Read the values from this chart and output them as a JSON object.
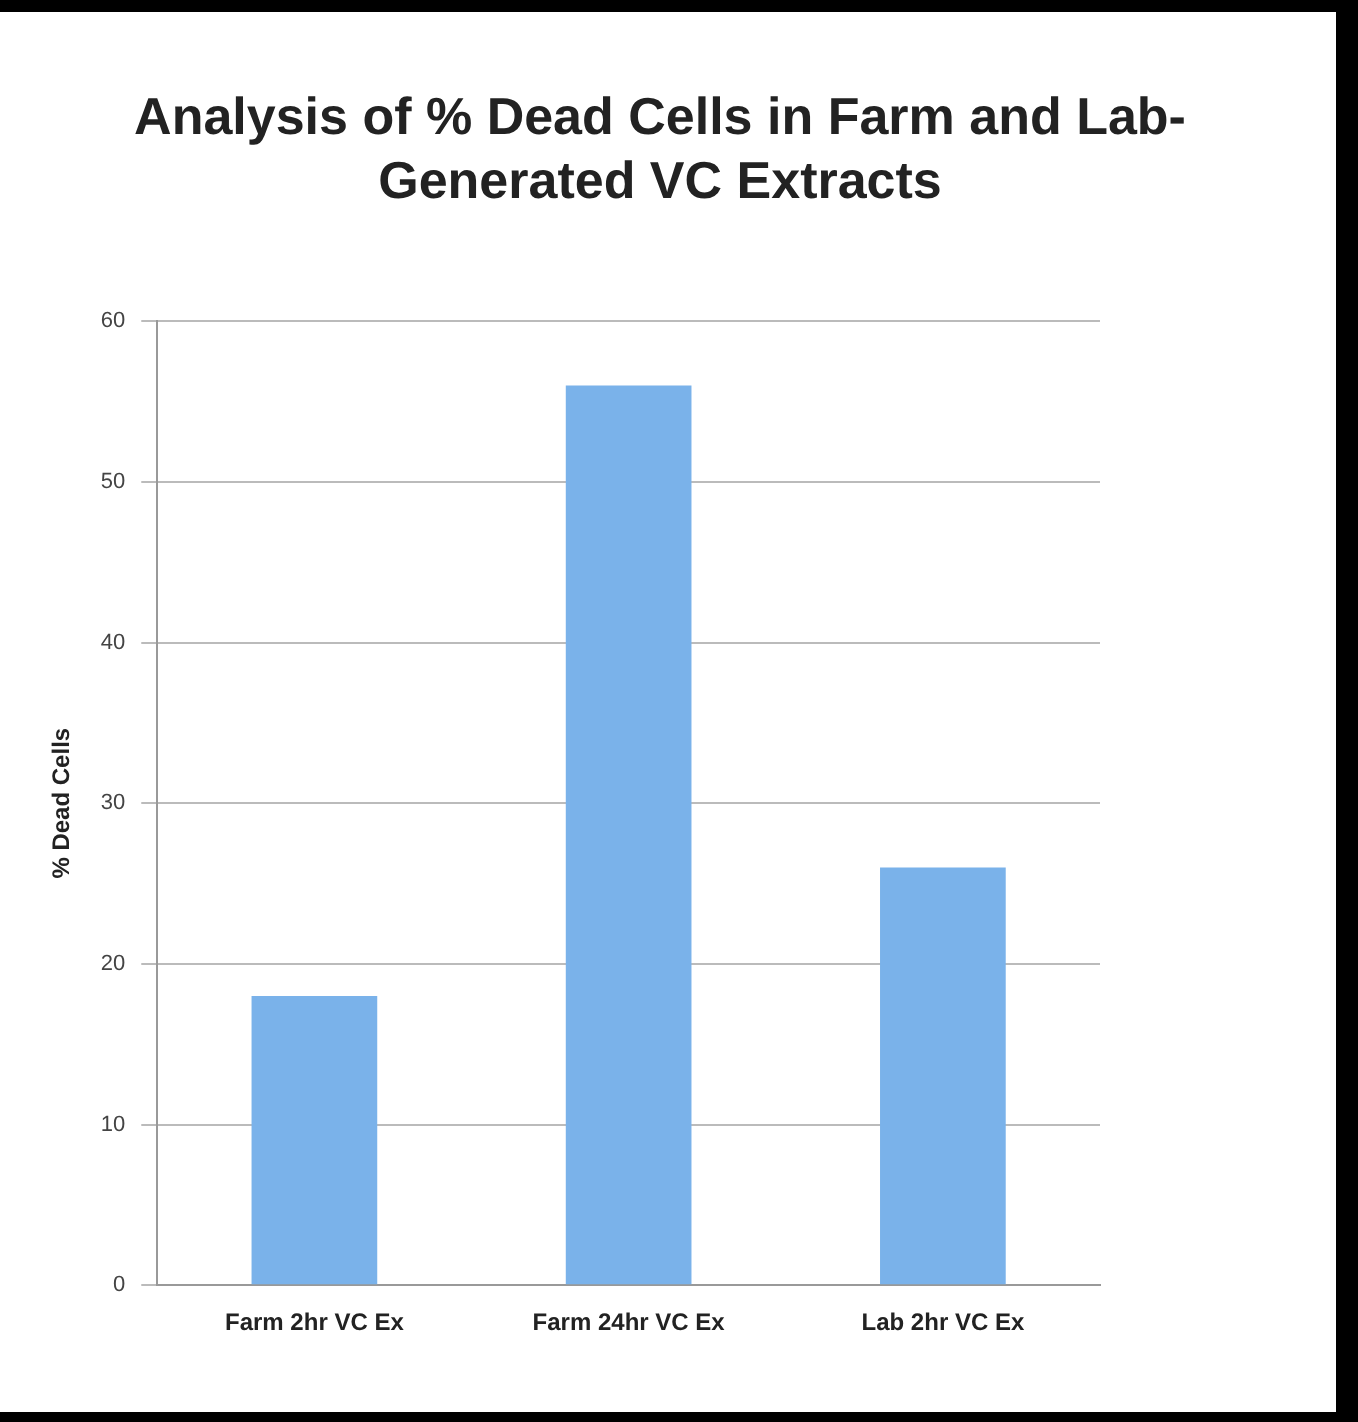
{
  "chart_data": {
    "type": "bar",
    "title": "Analysis of % Dead Cells in Farm and Lab-Generated VC Extracts",
    "ylabel": "% Dead Cells",
    "categories": [
      "Farm 2hr VC Ex",
      "Farm 24hr VC Ex",
      "Lab 2hr VC Ex"
    ],
    "values": [
      18,
      56,
      26
    ],
    "color": "#7ab2ea",
    "ylim": [
      0,
      60
    ],
    "yticks": [
      0,
      10,
      20,
      30,
      40,
      50,
      60
    ],
    "grid": "y"
  }
}
